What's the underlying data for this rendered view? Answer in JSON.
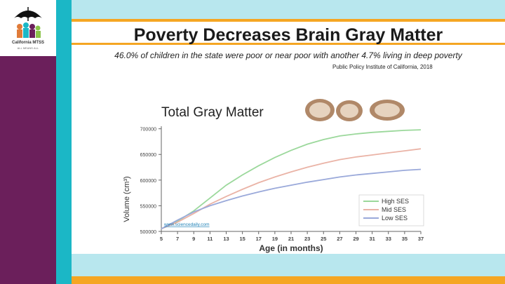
{
  "slide": {
    "title": "Poverty Decreases Brain Gray Matter",
    "subtitle": "46.0% of children in the state were poor or near poor with another 4.7% living in deep poverty",
    "source": "Public Policy Institute of California, 2018",
    "logo": {
      "name": "California MTSS",
      "tagline": "ALL MEANS ALL",
      "icon": "umbrella-family-icon"
    },
    "colors": {
      "purple": "#6b1f5b",
      "teal": "#1bb7c6",
      "light_teal": "#b8e7ee",
      "orange": "#f5a623"
    }
  },
  "chart_data": {
    "type": "line",
    "title": "Total Gray Matter",
    "xlabel": "Age (in months)",
    "ylabel": "Volume (cm³)",
    "x_ticks": [
      5,
      7,
      9,
      11,
      13,
      15,
      17,
      19,
      21,
      23,
      25,
      27,
      29,
      31,
      33,
      35,
      37
    ],
    "y_ticks": [
      "500000",
      "550000",
      "600000",
      "650000",
      "700000"
    ],
    "xlim": [
      5,
      37
    ],
    "ylim": [
      500000,
      705000
    ],
    "watermark": "www.sciencedaily.com",
    "legend_position": "bottom-right",
    "x": [
      5,
      7,
      9,
      11,
      13,
      15,
      17,
      19,
      21,
      23,
      25,
      27,
      29,
      31,
      33,
      35,
      37
    ],
    "series": [
      {
        "name": "High SES",
        "color": "#9bd89b",
        "values": [
          505000,
          520000,
          540000,
          565000,
          590000,
          610000,
          628000,
          644000,
          658000,
          670000,
          679000,
          686000,
          690000,
          693000,
          695000,
          697000,
          698000
        ]
      },
      {
        "name": "Mid SES",
        "color": "#eab3a6",
        "values": [
          505000,
          518000,
          535000,
          553000,
          568000,
          582000,
          595000,
          606000,
          616000,
          625000,
          633000,
          640000,
          645000,
          649000,
          653000,
          657000,
          661000
        ]
      },
      {
        "name": "Low SES",
        "color": "#9aa9da",
        "values": [
          505000,
          522000,
          538000,
          550000,
          560000,
          569000,
          577000,
          584000,
          590000,
          596000,
          601000,
          606000,
          610000,
          613000,
          616000,
          619000,
          621000
        ]
      }
    ]
  }
}
